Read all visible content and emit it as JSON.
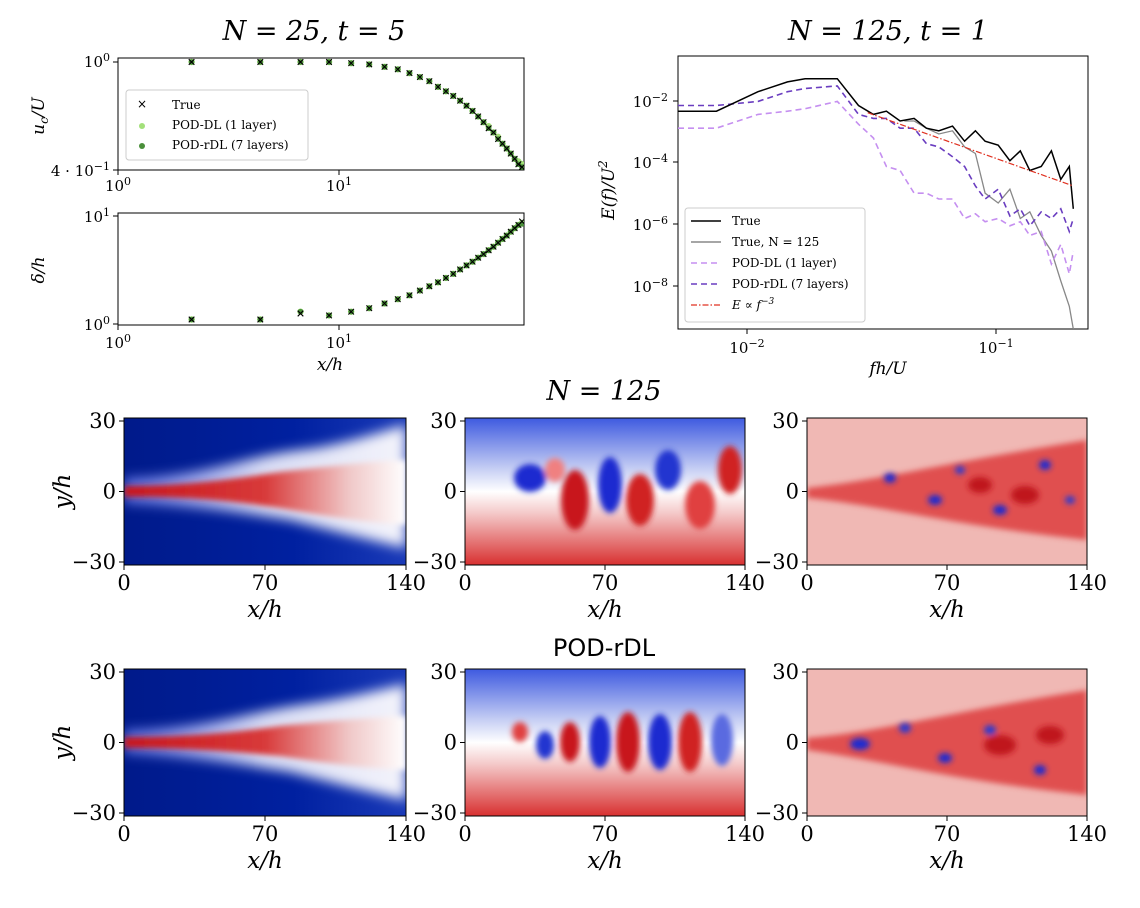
{
  "titles": {
    "top_left": "N = 25, t = 5",
    "top_right": "N = 125, t = 1",
    "mid_row": "N = 125",
    "bottom_row": "POD-rDL"
  },
  "chart_data": [
    {
      "type": "scatter",
      "panel": "uc-decay",
      "xscale": "log",
      "yscale": "log",
      "xlim": [
        1,
        60
      ],
      "ylim": [
        0.4,
        1.0
      ],
      "xticks": [
        "10^0",
        "10^1"
      ],
      "yticks": [
        "10^0",
        "4 · 10^-1"
      ],
      "xlabel": "",
      "ylabel": "u_c/U",
      "legend": {
        "placement": "center-left",
        "entries": [
          "True",
          "POD-DL (1 layer)",
          "POD-rDL (7 layers)"
        ]
      },
      "x": [
        2.1,
        4.2,
        6.3,
        8.4,
        10.5,
        12.6,
        14.7,
        16.8,
        18.9,
        21,
        23.1,
        25.2,
        27.3,
        29.4,
        31.5,
        33.6,
        35.7,
        37.8,
        39.9,
        42,
        44.1,
        46.2,
        48.3,
        50.4,
        52.5,
        54.6,
        56.7,
        58.8
      ],
      "series": [
        {
          "name": "True",
          "marker": "x",
          "color": "#000000",
          "values": [
            1.0,
            1.0,
            1.0,
            1.0,
            0.99,
            0.98,
            0.96,
            0.94,
            0.91,
            0.88,
            0.85,
            0.81,
            0.78,
            0.75,
            0.72,
            0.69,
            0.66,
            0.63,
            0.6,
            0.57,
            0.55,
            0.52,
            0.5,
            0.48,
            0.46,
            0.44,
            0.42,
            0.41
          ]
        },
        {
          "name": "POD-DL (1 layer)",
          "marker": "o",
          "color": "#a3e07a",
          "values": [
            1.0,
            1.0,
            1.0,
            1.0,
            0.99,
            0.98,
            0.96,
            0.94,
            0.91,
            0.88,
            0.85,
            0.81,
            0.78,
            0.75,
            0.72,
            0.69,
            0.66,
            0.63,
            0.6,
            0.58,
            0.55,
            0.53,
            0.5,
            0.48,
            0.46,
            0.44,
            0.43,
            0.42
          ]
        },
        {
          "name": "POD-rDL (7 layers)",
          "marker": "o",
          "color": "#4a8f3a",
          "values": [
            1.0,
            1.0,
            1.0,
            1.0,
            0.99,
            0.98,
            0.96,
            0.94,
            0.91,
            0.88,
            0.85,
            0.81,
            0.78,
            0.75,
            0.72,
            0.69,
            0.66,
            0.63,
            0.6,
            0.57,
            0.55,
            0.52,
            0.5,
            0.48,
            0.46,
            0.44,
            0.42,
            0.41
          ]
        }
      ]
    },
    {
      "type": "scatter",
      "panel": "delta-growth",
      "xscale": "log",
      "yscale": "log",
      "xlim": [
        1,
        60
      ],
      "ylim": [
        0.95,
        10.5
      ],
      "xticks": [
        "10^0",
        "10^1"
      ],
      "yticks": [
        "10^0",
        "10^1"
      ],
      "xlabel": "x/h",
      "ylabel": "δ/h",
      "x": [
        2.1,
        4.2,
        6.3,
        8.4,
        10.5,
        12.6,
        14.7,
        16.8,
        18.9,
        21,
        23.1,
        25.2,
        27.3,
        29.4,
        31.5,
        33.6,
        35.7,
        37.8,
        39.9,
        42,
        44.1,
        46.2,
        48.3,
        50.4,
        52.5,
        54.6,
        56.7,
        58.8
      ],
      "series": [
        {
          "name": "True",
          "marker": "x",
          "color": "#000000",
          "values": [
            1.05,
            1.05,
            1.2,
            1.15,
            1.25,
            1.35,
            1.5,
            1.65,
            1.8,
            2.0,
            2.2,
            2.4,
            2.65,
            2.9,
            3.2,
            3.5,
            3.8,
            4.15,
            4.5,
            4.9,
            5.3,
            5.8,
            6.3,
            6.8,
            7.4,
            8.0,
            8.6,
            9.3
          ]
        },
        {
          "name": "POD-DL (1 layer)",
          "marker": "o",
          "color": "#a3e07a",
          "values": [
            1.05,
            1.05,
            1.25,
            1.15,
            1.25,
            1.35,
            1.5,
            1.65,
            1.8,
            2.0,
            2.2,
            2.4,
            2.65,
            2.9,
            3.2,
            3.5,
            3.8,
            4.15,
            4.5,
            4.9,
            5.3,
            5.8,
            6.3,
            6.8,
            7.4,
            8.0,
            8.6,
            9.0
          ]
        },
        {
          "name": "POD-rDL (7 layers)",
          "marker": "o",
          "color": "#4a8f3a",
          "values": [
            1.05,
            1.05,
            1.25,
            1.15,
            1.25,
            1.35,
            1.5,
            1.65,
            1.8,
            2.0,
            2.2,
            2.4,
            2.65,
            2.9,
            3.2,
            3.5,
            3.8,
            4.15,
            4.5,
            4.9,
            5.3,
            5.8,
            6.3,
            6.8,
            7.4,
            8.0,
            8.6,
            8.8
          ]
        }
      ]
    },
    {
      "type": "line",
      "panel": "energy-spectrum",
      "xscale": "log",
      "yscale": "log",
      "xlim": [
        0.0055,
        0.3
      ],
      "ylim": [
        2e-09,
        0.5
      ],
      "xticks": [
        "10^-2",
        "10^-1"
      ],
      "yticks": [
        "10^-2",
        "10^-4",
        "10^-6",
        "10^-8"
      ],
      "xlabel": "fh/U",
      "ylabel": "E(f)/U^2",
      "legend": {
        "placement": "bottom-left",
        "entries": [
          "True",
          "True, N = 125",
          "POD-DL (1 layer)",
          "POD-rDL (7 layers)",
          "E ∝ f^-3"
        ]
      },
      "series": [
        {
          "name": "True",
          "style": "solid",
          "color": "#000000",
          "x": [
            0.0055,
            0.008,
            0.012,
            0.016,
            0.019,
            0.026,
            0.032,
            0.037,
            0.042,
            0.048,
            0.055,
            0.062,
            0.07,
            0.08,
            0.09,
            0.1,
            0.11,
            0.125,
            0.14,
            0.155,
            0.17,
            0.19,
            0.21,
            0.23,
            0.25,
            0.26
          ],
          "values": [
            0.01,
            0.01,
            0.04,
            0.08,
            0.1,
            0.1,
            0.015,
            0.008,
            0.01,
            0.005,
            0.006,
            0.003,
            0.0025,
            0.0035,
            0.0012,
            0.0025,
            0.0012,
            0.0009,
            0.0003,
            0.0006,
            0.00015,
            0.0002,
            0.0006,
            8e-05,
            0.0002,
            1e-05
          ]
        },
        {
          "name": "True, N = 125",
          "style": "solid",
          "color": "#888888",
          "x": [
            0.05,
            0.055,
            0.062,
            0.07,
            0.08,
            0.09,
            0.1,
            0.11,
            0.125,
            0.14,
            0.155,
            0.17,
            0.19,
            0.21,
            0.23,
            0.25,
            0.26
          ],
          "values": [
            0.005,
            0.005,
            0.003,
            0.002,
            0.0025,
            0.0008,
            0.0005,
            3e-05,
            1.5e-05,
            4e-05,
            5e-06,
            8e-06,
            1.5e-06,
            5e-07,
            6e-08,
            1e-08,
            2e-09
          ]
        },
        {
          "name": "POD-DL (1 layer)",
          "style": "dashed",
          "color": "#c58ff0",
          "x": [
            0.0055,
            0.008,
            0.012,
            0.016,
            0.019,
            0.026,
            0.032,
            0.037,
            0.042,
            0.048,
            0.055,
            0.062,
            0.07,
            0.08,
            0.09,
            0.1,
            0.11,
            0.125,
            0.14,
            0.155,
            0.17,
            0.19,
            0.21,
            0.23,
            0.25,
            0.26
          ],
          "values": [
            0.003,
            0.003,
            0.008,
            0.01,
            0.012,
            0.02,
            0.004,
            0.0015,
            0.0002,
            0.00015,
            3e-05,
            3e-05,
            2e-05,
            2e-05,
            5e-06,
            7e-06,
            4e-06,
            5e-06,
            3e-06,
            4e-06,
            1.5e-06,
            2e-06,
            2e-07,
            8e-07,
            1e-07,
            5e-07
          ]
        },
        {
          "name": "POD-rDL (7 layers)",
          "style": "dashed",
          "color": "#6a3dc0",
          "x": [
            0.0055,
            0.008,
            0.012,
            0.016,
            0.019,
            0.026,
            0.032,
            0.037,
            0.042,
            0.048,
            0.055,
            0.062,
            0.07,
            0.08,
            0.09,
            0.1,
            0.11,
            0.125,
            0.14,
            0.155,
            0.17,
            0.19,
            0.21,
            0.23,
            0.25,
            0.26
          ],
          "values": [
            0.015,
            0.015,
            0.02,
            0.04,
            0.05,
            0.06,
            0.008,
            0.006,
            0.006,
            0.003,
            0.003,
            0.001,
            0.0008,
            0.0004,
            0.0002,
            5e-05,
            2e-05,
            4e-05,
            6e-06,
            1e-05,
            3e-06,
            8e-06,
            5e-06,
            1e-05,
            2e-06,
            5e-06
          ]
        },
        {
          "name": "E ∝ f^-3",
          "style": "dashdot",
          "color": "#e03020",
          "x": [
            0.035,
            0.26
          ],
          "values": [
            0.009,
            5e-05
          ]
        }
      ]
    },
    {
      "type": "heatmap",
      "panel": "contour-grid",
      "rows": [
        "N = 125",
        "POD-rDL"
      ],
      "columns": 3,
      "xlim": [
        0,
        140
      ],
      "ylim": [
        -30,
        30
      ],
      "xticks": [
        "0",
        "70",
        "140"
      ],
      "yticks": [
        "30",
        "0",
        "−30"
      ],
      "xlabel": "x/h",
      "ylabel": "y/h",
      "colormap": [
        "#00208a",
        "#ffffff",
        "#c0141a"
      ]
    }
  ]
}
